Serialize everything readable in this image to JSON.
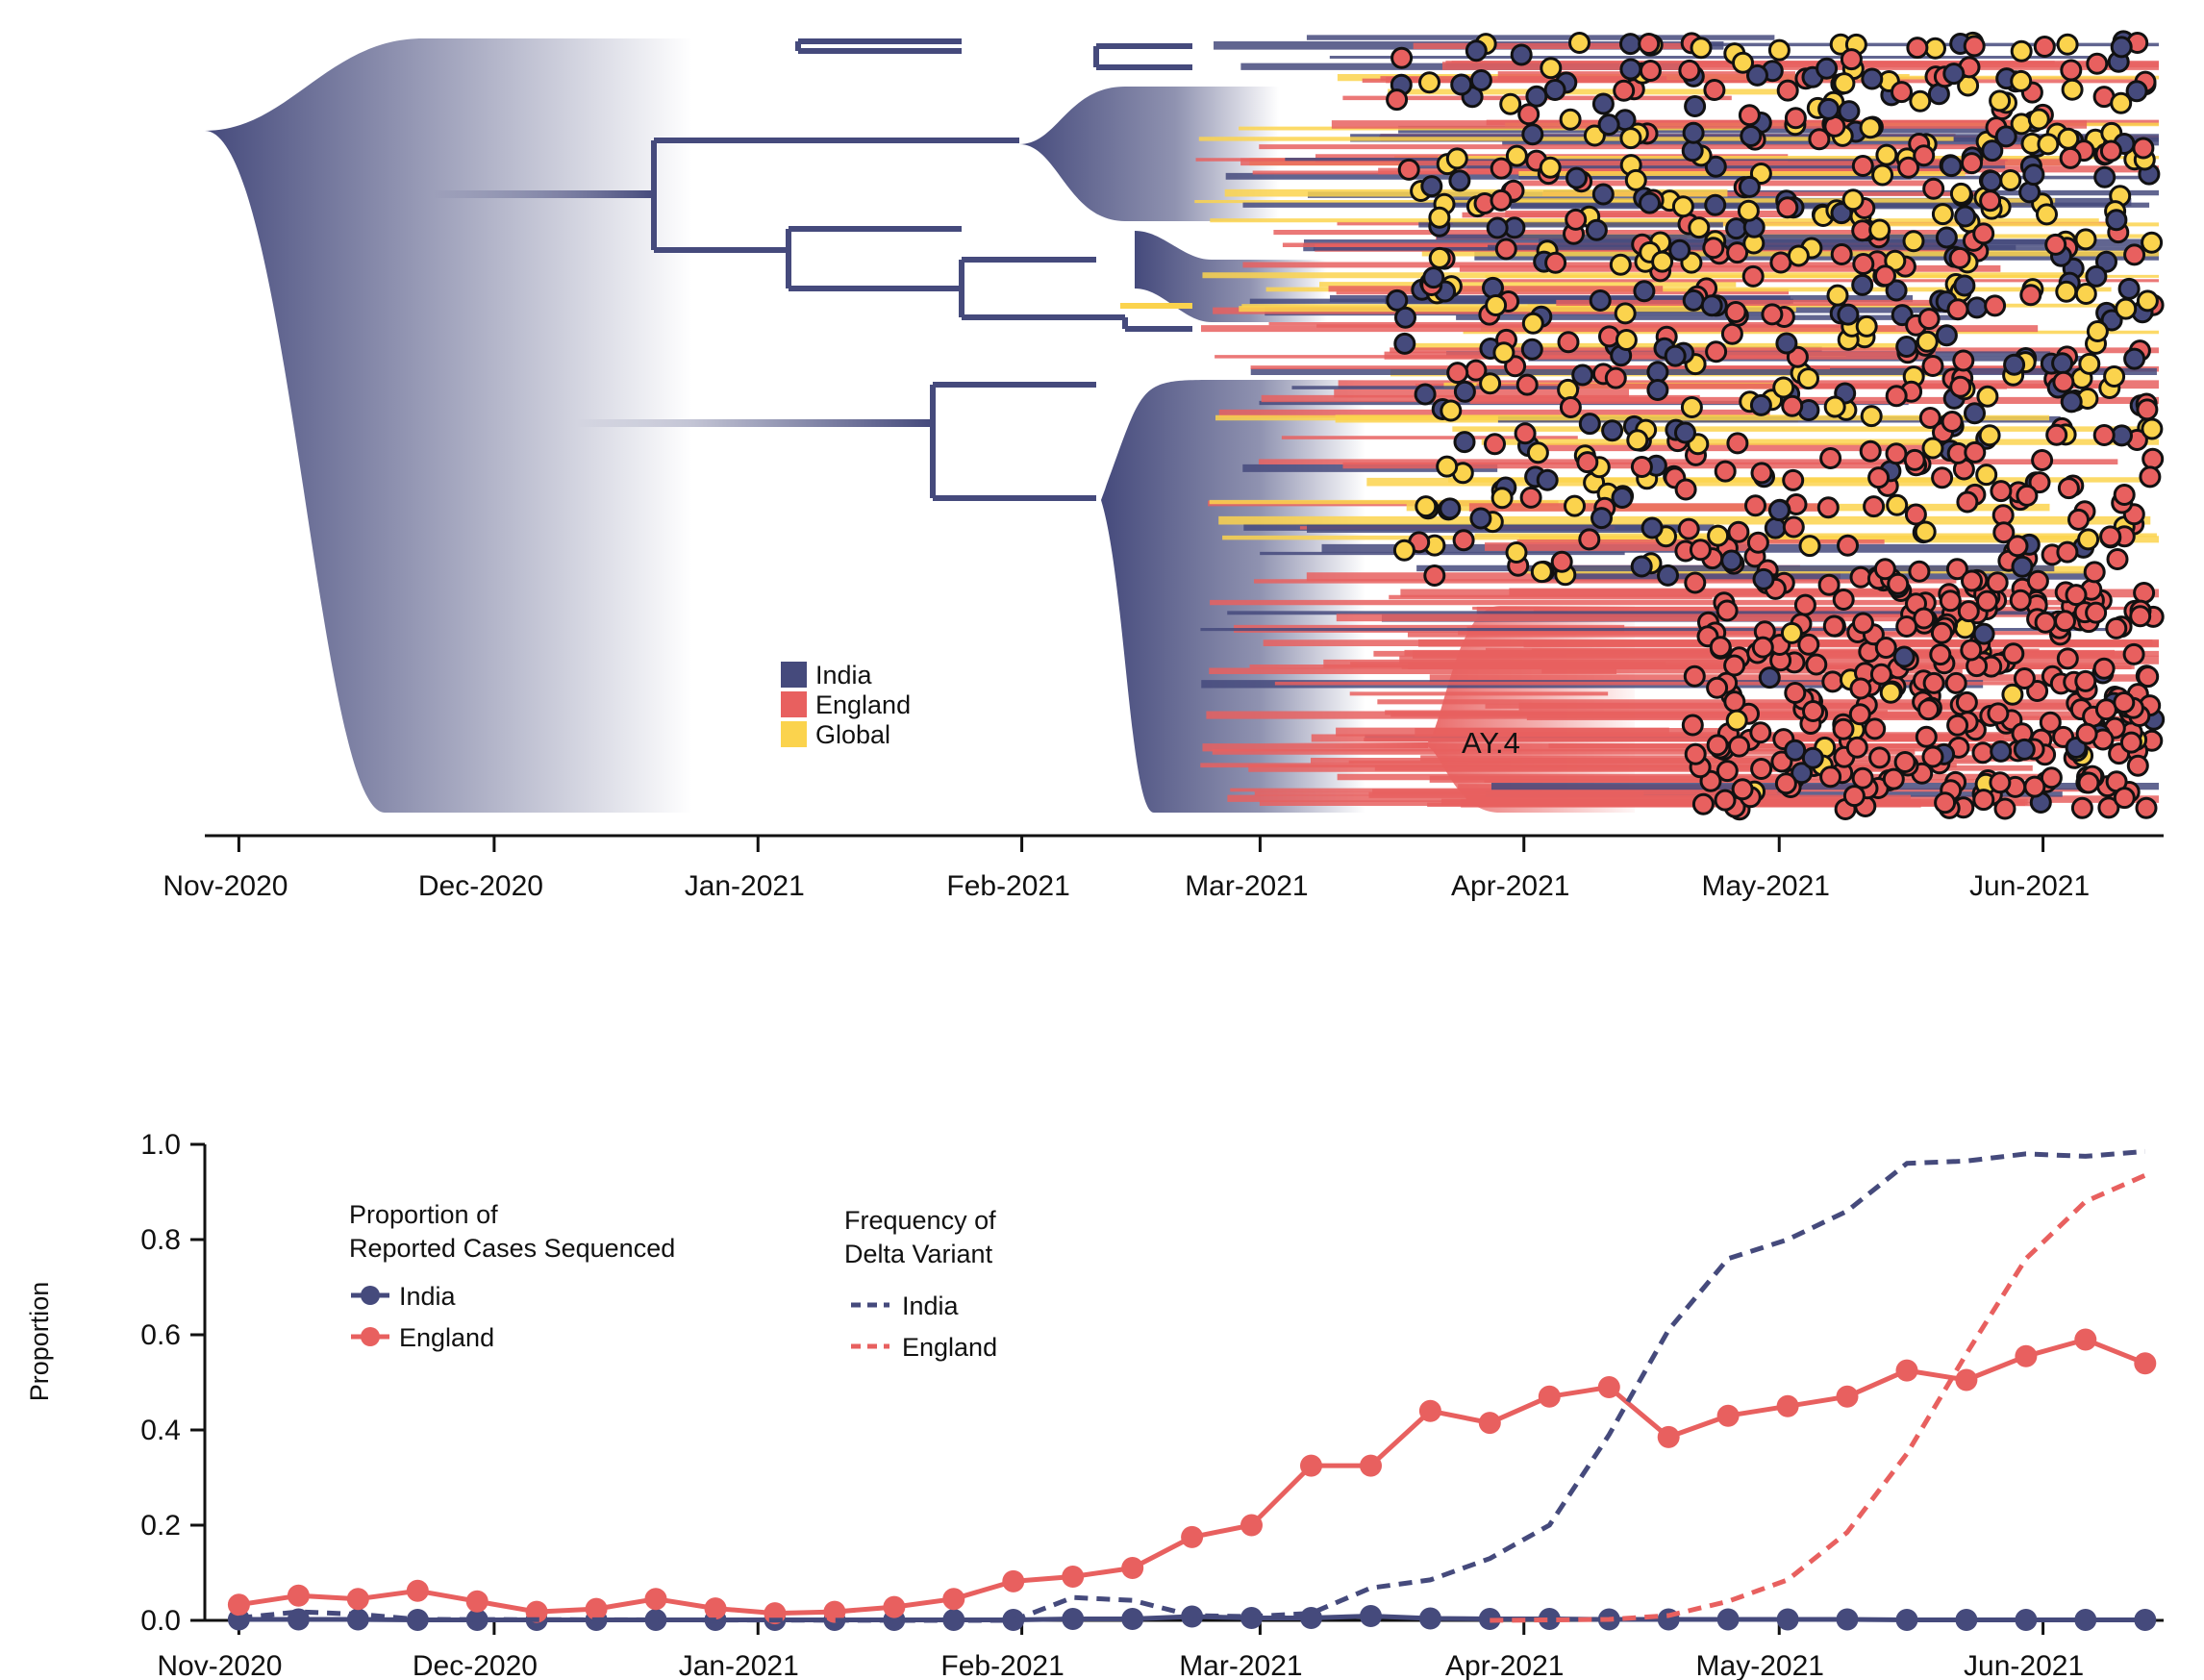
{
  "colors": {
    "india": "#454a7c",
    "england": "#e8605f",
    "global": "#fbd34d",
    "axis": "#111111"
  },
  "tree": {
    "legend": [
      {
        "label": "India",
        "color": "#454a7c"
      },
      {
        "label": "England",
        "color": "#e8605f"
      },
      {
        "label": "Global",
        "color": "#fbd34d"
      }
    ],
    "clade_label": "AY.4",
    "x_ticks": [
      "Nov-2020",
      "Dec-2020",
      "Jan-2021",
      "Feb-2021",
      "Mar-2021",
      "Apr-2021",
      "May-2021",
      "Jun-2021"
    ]
  },
  "chart_data": [
    {
      "type": "tree",
      "legend": [
        "India",
        "England",
        "Global"
      ],
      "annotations": [
        "AY.4"
      ],
      "x_ticks": [
        "Nov-2020",
        "Dec-2020",
        "Jan-2021",
        "Feb-2021",
        "Mar-2021",
        "Apr-2021",
        "May-2021",
        "Jun-2021"
      ],
      "x_range": [
        "2020-10-28",
        "2021-06-15"
      ]
    },
    {
      "type": "line",
      "ylabel": "Proportion",
      "ylim": [
        0,
        1
      ],
      "y_ticks": [
        "0.0",
        "0.2",
        "0.4",
        "0.6",
        "0.8",
        "1.0"
      ],
      "x_ticks": [
        "Nov-2020",
        "Dec-2020",
        "Jan-2021",
        "Feb-2021",
        "Mar-2021",
        "Apr-2021",
        "May-2021",
        "Jun-2021"
      ],
      "x_range": [
        "2020-10-28",
        "2021-06-15"
      ],
      "legend_groups": [
        {
          "title_lines": [
            "Proportion of",
            "Reported Cases Sequenced"
          ],
          "entries": [
            "India",
            "England"
          ]
        },
        {
          "title_lines": [
            "Frequency of",
            "Delta Variant"
          ],
          "entries": [
            "India",
            "England"
          ]
        }
      ],
      "x": [
        "2020-11-01",
        "2020-11-08",
        "2020-11-15",
        "2020-11-22",
        "2020-11-29",
        "2020-12-06",
        "2020-12-13",
        "2020-12-20",
        "2020-12-27",
        "2021-01-03",
        "2021-01-10",
        "2021-01-17",
        "2021-01-24",
        "2021-01-31",
        "2021-02-07",
        "2021-02-14",
        "2021-02-21",
        "2021-02-28",
        "2021-03-07",
        "2021-03-14",
        "2021-03-21",
        "2021-03-28",
        "2021-04-04",
        "2021-04-11",
        "2021-04-18",
        "2021-04-25",
        "2021-05-02",
        "2021-05-09",
        "2021-05-16",
        "2021-05-23",
        "2021-05-30",
        "2021-06-06",
        "2021-06-13"
      ],
      "series": [
        {
          "name": "India",
          "group": "Proportion of Reported Cases Sequenced",
          "style": "solid-markers",
          "color": "#454a7c",
          "values": [
            0.002,
            0.002,
            0.002,
            0.001,
            0.001,
            0.001,
            0.001,
            0.001,
            0.001,
            0.001,
            0.001,
            0.001,
            0.001,
            0.001,
            0.003,
            0.003,
            0.008,
            0.005,
            0.005,
            0.009,
            0.004,
            0.003,
            0.003,
            0.002,
            0.002,
            0.002,
            0.002,
            0.002,
            0.001,
            0.001,
            0.001,
            0.001,
            0.001
          ]
        },
        {
          "name": "England",
          "group": "Proportion of Reported Cases Sequenced",
          "style": "solid-markers",
          "color": "#e8605f",
          "values": [
            0.033,
            0.052,
            0.045,
            0.062,
            0.04,
            0.018,
            0.024,
            0.045,
            0.025,
            0.015,
            0.018,
            0.028,
            0.045,
            0.082,
            0.092,
            0.11,
            0.175,
            0.2,
            0.325,
            0.325,
            0.44,
            0.415,
            0.47,
            0.49,
            0.385,
            0.43,
            0.45,
            0.47,
            0.525,
            0.505,
            0.555,
            0.59,
            0.54
          ]
        },
        {
          "name": "India",
          "group": "Frequency of Delta Variant",
          "style": "dashed",
          "color": "#454a7c",
          "points": [
            [
              "2020-11-01",
              0.005
            ],
            [
              "2020-11-08",
              0.018
            ],
            [
              "2020-11-15",
              0.013
            ],
            [
              "2020-11-22",
              0.002
            ],
            [
              "2021-01-20",
              0.0
            ],
            [
              "2021-01-31",
              0.0
            ],
            [
              "2021-02-07",
              0.048
            ],
            [
              "2021-02-14",
              0.042
            ],
            [
              "2021-02-21",
              0.01
            ],
            [
              "2021-02-28",
              0.008
            ],
            [
              "2021-03-07",
              0.015
            ],
            [
              "2021-03-14",
              0.068
            ],
            [
              "2021-03-21",
              0.085
            ],
            [
              "2021-03-28",
              0.13
            ],
            [
              "2021-04-04",
              0.2
            ],
            [
              "2021-04-11",
              0.39
            ],
            [
              "2021-04-18",
              0.61
            ],
            [
              "2021-04-25",
              0.76
            ],
            [
              "2021-05-02",
              0.8
            ],
            [
              "2021-05-09",
              0.86
            ],
            [
              "2021-05-16",
              0.96
            ],
            [
              "2021-05-23",
              0.965
            ],
            [
              "2021-05-30",
              0.98
            ],
            [
              "2021-06-06",
              0.975
            ],
            [
              "2021-06-13",
              0.985
            ]
          ]
        },
        {
          "name": "England",
          "group": "Frequency of Delta Variant",
          "style": "dashed",
          "color": "#e8605f",
          "points": [
            [
              "2021-03-28",
              0.0
            ],
            [
              "2021-04-11",
              0.002
            ],
            [
              "2021-04-18",
              0.01
            ],
            [
              "2021-04-25",
              0.04
            ],
            [
              "2021-05-02",
              0.085
            ],
            [
              "2021-05-09",
              0.185
            ],
            [
              "2021-05-16",
              0.35
            ],
            [
              "2021-05-23",
              0.56
            ],
            [
              "2021-05-30",
              0.76
            ],
            [
              "2021-06-06",
              0.88
            ],
            [
              "2021-06-13",
              0.935
            ]
          ]
        }
      ]
    }
  ]
}
